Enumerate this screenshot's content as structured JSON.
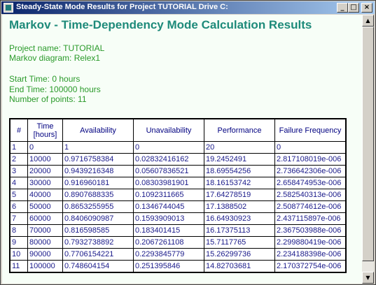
{
  "window": {
    "title": "Steady-State Mode Results for Project TUTORIAL Drive C:"
  },
  "titlebar_buttons": {
    "minimize": "_",
    "maximize": "□",
    "close": "×"
  },
  "report": {
    "heading": "Markov - Time-Dependency Mode Calculation Results",
    "project_name": "Project name: TUTORIAL",
    "markov_diagram": "Markov diagram: Relex1",
    "start_time": "Start Time: 0 hours",
    "end_time": "End Time: 100000 hours",
    "num_points": "Number of points: 11"
  },
  "table": {
    "headers": [
      "#",
      "Time [hours]",
      "Availability",
      "Unavailability",
      "Performance",
      "Failure Frequency"
    ],
    "rows": [
      [
        "1",
        "0",
        "1",
        "0",
        "20",
        "0"
      ],
      [
        "2",
        "10000",
        "0.9716758384",
        "0.02832416162",
        "19.2452491",
        "2.817108019e-006"
      ],
      [
        "3",
        "20000",
        "0.9439216348",
        "0.05607836521",
        "18.69554256",
        "2.736642306e-006"
      ],
      [
        "4",
        "30000",
        "0.916960181",
        "0.08303981901",
        "18.16153742",
        "2.658474953e-006"
      ],
      [
        "5",
        "40000",
        "0.8907688335",
        "0.1092311665",
        "17.64278519",
        "2.582540313e-006"
      ],
      [
        "6",
        "50000",
        "0.8653255955",
        "0.1346744045",
        "17.1388502",
        "2.508774612e-006"
      ],
      [
        "7",
        "60000",
        "0.8406090987",
        "0.1593909013",
        "16.64930923",
        "2.437115897e-006"
      ],
      [
        "8",
        "70000",
        "0.816598585",
        "0.183401415",
        "16.17375113",
        "2.367503988e-006"
      ],
      [
        "9",
        "80000",
        "0.7932738892",
        "0.2067261108",
        "15.7117765",
        "2.299880419e-006"
      ],
      [
        "10",
        "90000",
        "0.7706154221",
        "0.2293845779",
        "15.26299736",
        "2.234188398e-006"
      ],
      [
        "11",
        "100000",
        "0.748604154",
        "0.251395846",
        "14.82703681",
        "2.170372754e-006"
      ]
    ]
  },
  "colors": {
    "heading": "#1e8a7a",
    "info_text": "#2a9a2a",
    "table_text": "#1a1a8a",
    "background": "#f7fef7",
    "titlebar": "#0a246a"
  }
}
